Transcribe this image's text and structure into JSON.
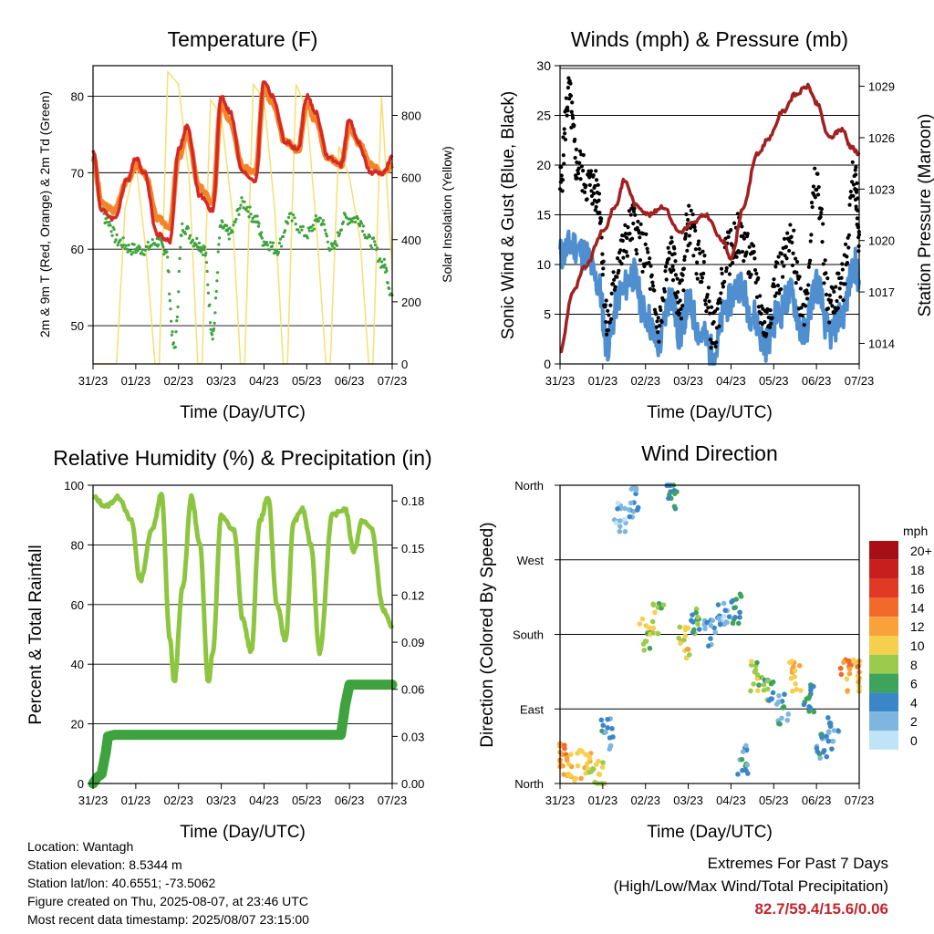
{
  "panels": {
    "temperature": {
      "title": "Temperature (F)",
      "ylabel_left": "2m & 9m T (Red, Orange) & 2m Td (Green)",
      "ylabel_right": "Solar Insolation (Yellow)",
      "xlabel": "Time (Day/UTC)",
      "left_ticks": [
        "50",
        "60",
        "70",
        "80"
      ],
      "right_ticks": [
        "0",
        "200",
        "400",
        "600",
        "800"
      ]
    },
    "winds": {
      "title": "Winds (mph) & Pressure (mb)",
      "ylabel_left": "Sonic Wind & Gust (Blue, Black)",
      "ylabel_right": "Station Pressure (Maroon)",
      "xlabel": "Time (Day/UTC)",
      "left_ticks": [
        "0",
        "5",
        "10",
        "15",
        "20",
        "25",
        "30"
      ],
      "right_ticks": [
        "1014",
        "1017",
        "1020",
        "1023",
        "1026",
        "1029"
      ]
    },
    "humidity": {
      "title": "Relative Humidity (%) & Precipitation (in)",
      "ylabel_left": "Percent & Total Rainfall",
      "xlabel": "Time (Day/UTC)",
      "left_ticks": [
        "0",
        "20",
        "40",
        "60",
        "80",
        "100"
      ],
      "right_ticks": [
        "0.00",
        "0.03",
        "0.06",
        "0.09",
        "0.12",
        "0.15",
        "0.18"
      ]
    },
    "direction": {
      "title": "Wind Direction",
      "ylabel_left": "Direction (Colored By Speed)",
      "xlabel": "Time (Day/UTC)",
      "left_ticks": [
        "North",
        "East",
        "South",
        "West",
        "North"
      ],
      "legend_title": "mph",
      "legend_labels": [
        "20+",
        "18",
        "16",
        "14",
        "12",
        "10",
        "8",
        "6",
        "4",
        "2",
        "0"
      ],
      "legend_colors": [
        "#a50f15",
        "#c81e1e",
        "#e03a25",
        "#f26a2a",
        "#f9a13a",
        "#f4d04e",
        "#9bcb4c",
        "#3ea35b",
        "#3b86c6",
        "#7fb6e0",
        "#bfe3f7"
      ]
    }
  },
  "x_ticks": [
    "31/23",
    "01/23",
    "02/23",
    "03/23",
    "04/23",
    "05/23",
    "06/23",
    "07/23"
  ],
  "info": {
    "location": "Location: Wantagh",
    "elevation": "Station elevation: 8.5344 m",
    "latlon": "Station lat/lon: 40.6551; -73.5062",
    "created": "Figure created on Thu, 2025-08-07, at 23:46 UTC",
    "recent": "Most recent data timestamp: 2025/08/07 23:15:00"
  },
  "extremes": {
    "heading": "Extremes For Past 7 Days",
    "subheading": "(High/Low/Max Wind/Total Precipitation)",
    "values": "82.7/59.4/15.6/0.06"
  },
  "chart_data": [
    {
      "type": "line",
      "x_unit": "days since 31/23",
      "ylim_left": [
        45,
        84
      ],
      "ylim_right": [
        0,
        960
      ],
      "series": [
        {
          "name": "2m T",
          "color": "#d42a25",
          "x": [
            0,
            0.2,
            0.5,
            0.8,
            1.0,
            1.2,
            1.5,
            1.8,
            2.0,
            2.2,
            2.5,
            2.8,
            3.0,
            3.2,
            3.5,
            3.8,
            4.0,
            4.2,
            4.5,
            4.8,
            5.0,
            5.2,
            5.5,
            5.8,
            6.0,
            6.2,
            6.5,
            6.8,
            7.0
          ],
          "y": [
            73,
            65,
            64,
            69,
            72,
            70,
            62,
            61,
            73,
            76,
            67,
            65,
            80,
            78,
            70,
            69,
            82,
            80,
            74,
            73,
            80,
            78,
            72,
            71,
            77,
            74,
            70,
            70,
            72
          ]
        },
        {
          "name": "9m T",
          "color": "#f4842a",
          "x": [
            0,
            0.2,
            0.5,
            0.8,
            1.0,
            1.2,
            1.5,
            1.8,
            2.0,
            2.2,
            2.5,
            2.8,
            3.0,
            3.2,
            3.5,
            3.8,
            4.0,
            4.2,
            4.5,
            4.8,
            5.0,
            5.2,
            5.5,
            5.8,
            6.0,
            6.2,
            6.5,
            6.8,
            7.0
          ],
          "y": [
            72,
            66,
            65,
            69,
            71,
            70,
            64,
            63,
            72,
            75,
            68,
            66,
            79,
            77,
            71,
            70,
            81,
            79,
            74,
            73,
            79,
            77,
            72,
            71,
            76,
            74,
            71,
            70,
            71
          ]
        },
        {
          "name": "2m Td",
          "color": "#3ea33e",
          "x": [
            0,
            0.3,
            0.6,
            0.9,
            1.2,
            1.5,
            1.7,
            1.9,
            2.1,
            2.4,
            2.6,
            2.8,
            3.0,
            3.2,
            3.5,
            3.8,
            4.0,
            4.3,
            4.6,
            5.0,
            5.3,
            5.6,
            5.9,
            6.2,
            6.5,
            6.8,
            7.0
          ],
          "y": [
            72,
            64,
            61,
            60,
            60,
            61,
            60,
            47,
            63,
            61,
            60,
            49,
            63,
            62,
            66,
            64,
            61,
            60,
            64,
            62,
            64,
            60,
            64,
            64,
            61,
            58,
            54
          ]
        },
        {
          "name": "Solar Insolation",
          "color": "#f6df72",
          "x": [
            0,
            0.55,
            0.75,
            1.0,
            1.25,
            1.45,
            1.55,
            1.75,
            2.0,
            2.25,
            2.45,
            2.55,
            2.75,
            3.0,
            3.25,
            3.45,
            3.55,
            3.75,
            4.0,
            4.25,
            4.45,
            4.55,
            4.75,
            5.0,
            5.25,
            5.45,
            5.55,
            5.75,
            6.0,
            6.25,
            6.45,
            6.55,
            6.75,
            7.0
          ],
          "y": [
            0,
            0,
            500,
            650,
            350,
            0,
            0,
            940,
            900,
            600,
            0,
            0,
            850,
            800,
            500,
            0,
            0,
            900,
            850,
            500,
            0,
            0,
            900,
            820,
            400,
            0,
            0,
            700,
            600,
            400,
            0,
            0,
            860,
            300
          ]
        }
      ]
    },
    {
      "type": "line",
      "x_unit": "days since 31/23",
      "ylim_left": [
        0,
        30
      ],
      "ylim_right": [
        1012.8,
        1030.2
      ],
      "series": [
        {
          "name": "Sonic Wind",
          "color": "#4f8fcf",
          "x": [
            0,
            0.3,
            0.6,
            0.9,
            1.1,
            1.4,
            1.7,
            2.0,
            2.3,
            2.6,
            2.8,
            3.0,
            3.3,
            3.6,
            3.9,
            4.2,
            4.5,
            4.8,
            5.1,
            5.4,
            5.7,
            6.0,
            6.3,
            6.6,
            6.9,
            7.0
          ],
          "y": [
            11,
            12,
            11,
            8,
            2,
            7,
            9,
            5,
            2,
            7,
            3,
            6,
            3,
            1,
            6,
            8,
            5,
            2,
            5,
            7,
            3,
            8,
            3,
            5,
            10,
            8
          ]
        },
        {
          "name": "Gust",
          "color": "#000000",
          "x": [
            0,
            0.2,
            0.4,
            0.7,
            0.9,
            1.1,
            1.4,
            1.7,
            2.0,
            2.3,
            2.6,
            2.8,
            3.0,
            3.3,
            3.6,
            3.9,
            4.2,
            4.5,
            4.8,
            5.1,
            5.4,
            5.7,
            6.0,
            6.3,
            6.6,
            6.9,
            7.0
          ],
          "y": [
            18,
            27,
            20,
            18,
            17,
            4,
            11,
            14,
            11,
            4,
            11,
            6,
            14,
            10,
            3,
            11,
            13,
            10,
            4,
            9,
            12,
            6,
            18,
            6,
            8,
            19,
            13
          ]
        },
        {
          "name": "Station Pressure",
          "color": "#a12021",
          "x": [
            0,
            0.3,
            0.6,
            1.0,
            1.3,
            1.5,
            1.8,
            2.1,
            2.4,
            2.8,
            3.1,
            3.4,
            3.8,
            4.0,
            4.3,
            4.6,
            4.9,
            5.2,
            5.5,
            5.8,
            6.0,
            6.3,
            6.6,
            6.8,
            7.0
          ],
          "y": [
            1013.5,
            1017,
            1018.5,
            1020.5,
            1022,
            1023.5,
            1022,
            1021.5,
            1022,
            1020.5,
            1021,
            1021.5,
            1020,
            1019,
            1022,
            1025,
            1026,
            1027.5,
            1028.5,
            1029,
            1028,
            1026,
            1026.5,
            1025.5,
            1025
          ]
        }
      ]
    },
    {
      "type": "line",
      "x_unit": "days since 31/23",
      "ylim_left": [
        0,
        100
      ],
      "ylim_right": [
        0,
        0.19
      ],
      "series": [
        {
          "name": "Relative Humidity",
          "color": "#8dc540",
          "x": [
            0,
            0.3,
            0.6,
            0.9,
            1.1,
            1.4,
            1.6,
            1.8,
            1.9,
            2.1,
            2.3,
            2.5,
            2.7,
            2.8,
            3.0,
            3.3,
            3.5,
            3.7,
            3.9,
            4.1,
            4.3,
            4.5,
            4.7,
            4.9,
            5.1,
            5.3,
            5.6,
            5.9,
            6.1,
            6.3,
            6.5,
            6.8,
            7.0
          ],
          "y": [
            96,
            93,
            96,
            88,
            68,
            86,
            97,
            48,
            34,
            66,
            96,
            80,
            34,
            44,
            90,
            85,
            55,
            44,
            88,
            96,
            60,
            48,
            88,
            92,
            80,
            44,
            90,
            92,
            78,
            88,
            86,
            58,
            52
          ]
        },
        {
          "name": "Total Precipitation",
          "color": "#3ea33e",
          "x": [
            0,
            0.1,
            0.2,
            0.3,
            0.35,
            0.5,
            1.0,
            2.0,
            3.0,
            4.0,
            5.0,
            5.8,
            5.9,
            6.0,
            6.5,
            7.0
          ],
          "y": [
            0,
            0.004,
            0.006,
            0.02,
            0.03,
            0.031,
            0.031,
            0.031,
            0.031,
            0.031,
            0.031,
            0.031,
            0.05,
            0.063,
            0.063,
            0.063
          ]
        }
      ]
    },
    {
      "type": "scatter",
      "x_unit": "days since 31/23",
      "y_categories": [
        "North",
        "East",
        "South",
        "West",
        "North"
      ],
      "ylim": [
        0,
        360
      ],
      "series": [
        {
          "name": "Direction",
          "x": [
            0,
            0.3,
            0.6,
            0.9,
            1.1,
            1.4,
            1.7,
            2.0,
            2.3,
            2.6,
            2.9,
            3.2,
            3.5,
            3.8,
            4.1,
            4.3,
            4.6,
            4.9,
            5.2,
            5.5,
            5.8,
            6.1,
            6.4,
            6.7,
            7.0
          ],
          "y": [
            30,
            20,
            25,
            10,
            60,
            320,
            340,
            180,
            200,
            350,
            170,
            195,
            180,
            200,
            210,
            30,
            130,
            110,
            90,
            130,
            100,
            40,
            60,
            130,
            130
          ],
          "speed": [
            13,
            11,
            10,
            9,
            4,
            2,
            3,
            8,
            8,
            5,
            10,
            6,
            3,
            2,
            5,
            4,
            8,
            6,
            4,
            11,
            5,
            4,
            3,
            12,
            12
          ]
        }
      ]
    }
  ]
}
